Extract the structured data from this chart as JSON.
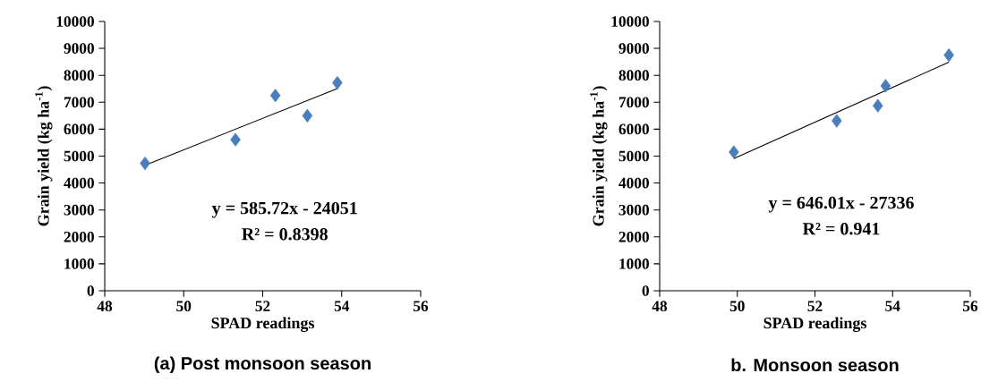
{
  "chart_data": [
    {
      "type": "scatter",
      "title": "(a) Post monsoon season",
      "xlabel": "SPAD readings",
      "ylabel": "Grain yield (kg ha$^{-1}$)",
      "xlim": [
        48,
        56
      ],
      "xticks": [
        48,
        50,
        52,
        54,
        56
      ],
      "ylim": [
        0,
        10000
      ],
      "yticks": [
        0,
        1000,
        2000,
        3000,
        4000,
        5000,
        6000,
        7000,
        8000,
        9000,
        10000
      ],
      "marker": "diamond",
      "grid": false,
      "annotations": [
        "y = 585.72x - 24051",
        "R² = 0.8398"
      ],
      "series": [
        {
          "color": "#4a7ebb",
          "x": [
            49.02,
            51.31,
            52.32,
            53.13,
            53.89
          ],
          "values": [
            4730,
            5610,
            7250,
            6500,
            7720
          ]
        },
        {
          "type": "line",
          "color": "#000000",
          "marker": "none",
          "x": [
            49.02,
            53.89
          ],
          "values": [
            4660,
            7510
          ]
        }
      ]
    },
    {
      "type": "scatter",
      "title": "b. Monsoon season",
      "xlabel": "SPAD readings",
      "ylabel": "Grain yield (kg ha$^{-1}$)",
      "xlim": [
        48,
        56
      ],
      "xticks": [
        48,
        50,
        52,
        54,
        56
      ],
      "ylim": [
        0,
        10000
      ],
      "yticks": [
        0,
        1000,
        2000,
        3000,
        4000,
        5000,
        6000,
        7000,
        8000,
        9000,
        10000
      ],
      "marker": "diamond",
      "grid": false,
      "annotations": [
        "y = 646.01x - 27336",
        "R² = 0.941"
      ],
      "series": [
        {
          "color": "#4a7ebb",
          "x": [
            49.91,
            52.56,
            53.62,
            53.82,
            55.45
          ],
          "values": [
            5150,
            6310,
            6870,
            7610,
            8750
          ]
        },
        {
          "type": "line",
          "color": "#000000",
          "marker": "none",
          "x": [
            49.91,
            55.45
          ],
          "values": [
            4910,
            8490
          ]
        }
      ]
    }
  ]
}
